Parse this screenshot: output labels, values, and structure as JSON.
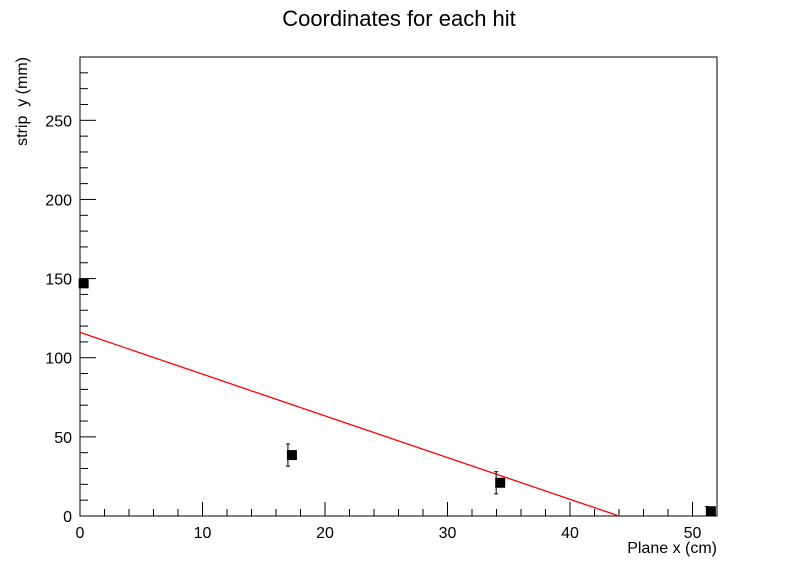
{
  "chart_data": {
    "type": "scatter",
    "title": "Coordinates for each hit",
    "xlabel": "Plane x (cm)",
    "ylabel": "strip  y (mm)",
    "xlim": [
      0,
      52
    ],
    "ylim": [
      0,
      290
    ],
    "x_ticks": [
      0,
      10,
      20,
      30,
      40,
      50
    ],
    "y_ticks": [
      0,
      50,
      100,
      150,
      200,
      250
    ],
    "grid": false,
    "series": [
      {
        "marker": "filled-square",
        "color": "#000000",
        "points": [
          {
            "x": 0.3,
            "y": 147,
            "yerr": 0
          },
          {
            "x": 17.3,
            "y": 38.5,
            "yerr": 7
          },
          {
            "x": 34.3,
            "y": 21,
            "yerr": 7
          },
          {
            "x": 51.5,
            "y": 3,
            "yerr": 3
          }
        ]
      }
    ],
    "fit_line": {
      "color": "#ff0000",
      "x": [
        0,
        44
      ],
      "y": [
        116,
        0
      ]
    }
  }
}
